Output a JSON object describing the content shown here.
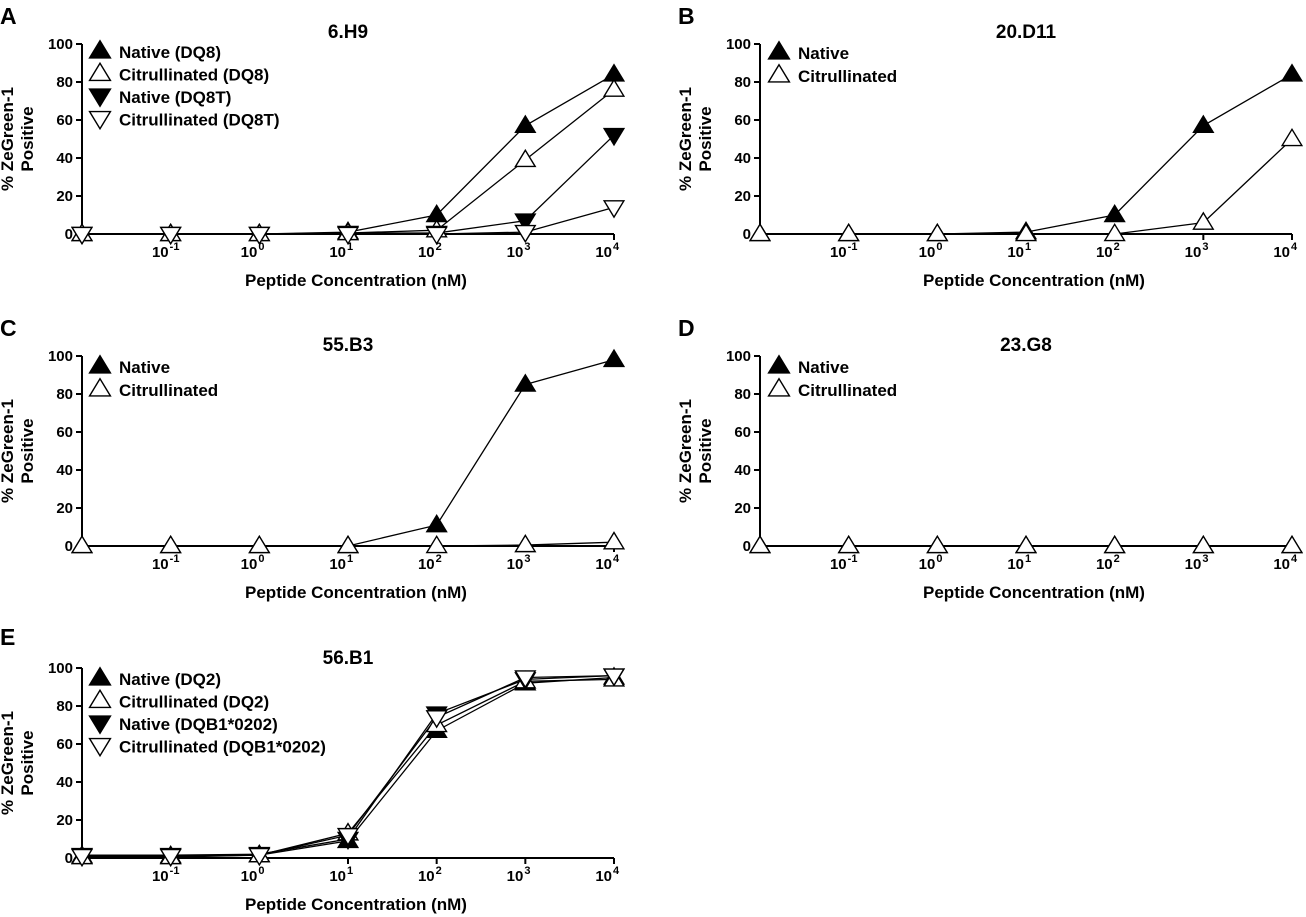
{
  "chart_data": [
    {
      "panel": "A",
      "title": "6.H9",
      "type": "line",
      "xlabel": "Peptide Concentration (nM)",
      "ylabel": [
        "% ZeGreen-1",
        "Positive"
      ],
      "x_tick_labels": [
        {
          "base": "10",
          "exp": "-1"
        },
        {
          "base": "10",
          "exp": "0"
        },
        {
          "base": "10",
          "exp": "1"
        },
        {
          "base": "10",
          "exp": "2"
        },
        {
          "base": "10",
          "exp": "3"
        },
        {
          "base": "10",
          "exp": "4"
        }
      ],
      "x_log10": [
        -2,
        -1,
        0,
        1,
        2,
        3,
        4
      ],
      "y_ticks": [
        0,
        20,
        40,
        60,
        80,
        100
      ],
      "ylim": [
        0,
        100
      ],
      "series": [
        {
          "name": "Native (DQ8)",
          "marker": "triangle-up-filled",
          "values": [
            0,
            0,
            0,
            1,
            10,
            57,
            84
          ]
        },
        {
          "name": "Citrullinated (DQ8)",
          "marker": "triangle-up-open",
          "values": [
            0,
            0,
            0,
            0.5,
            2,
            39,
            76
          ]
        },
        {
          "name": "Native (DQ8T)",
          "marker": "triangle-down-filled",
          "values": [
            0,
            0,
            0,
            0.5,
            0.5,
            7,
            52
          ]
        },
        {
          "name": "Citrullinated (DQ8T)",
          "marker": "triangle-down-open",
          "values": [
            0,
            0,
            0,
            0,
            0,
            1,
            14
          ]
        }
      ]
    },
    {
      "panel": "B",
      "title": "20.D11",
      "type": "line",
      "xlabel": "Peptide Concentration (nM)",
      "ylabel": [
        "% ZeGreen-1",
        "Positive"
      ],
      "x_tick_labels": [
        {
          "base": "10",
          "exp": "-1"
        },
        {
          "base": "10",
          "exp": "0"
        },
        {
          "base": "10",
          "exp": "1"
        },
        {
          "base": "10",
          "exp": "2"
        },
        {
          "base": "10",
          "exp": "3"
        },
        {
          "base": "10",
          "exp": "4"
        }
      ],
      "x_log10": [
        -2,
        -1,
        0,
        1,
        2,
        3,
        4
      ],
      "y_ticks": [
        0,
        20,
        40,
        60,
        80,
        100
      ],
      "ylim": [
        0,
        100
      ],
      "series": [
        {
          "name": "Native",
          "marker": "triangle-up-filled",
          "values": [
            0,
            0,
            0,
            1,
            10,
            57,
            84
          ]
        },
        {
          "name": "Citrullinated",
          "marker": "triangle-up-open",
          "values": [
            0,
            0,
            0,
            0,
            0,
            6,
            50
          ]
        }
      ]
    },
    {
      "panel": "C",
      "title": "55.B3",
      "type": "line",
      "xlabel": "Peptide Concentration (nM)",
      "ylabel": [
        "% ZeGreen-1",
        "Positive"
      ],
      "x_tick_labels": [
        {
          "base": "10",
          "exp": "-1"
        },
        {
          "base": "10",
          "exp": "0"
        },
        {
          "base": "10",
          "exp": "1"
        },
        {
          "base": "10",
          "exp": "2"
        },
        {
          "base": "10",
          "exp": "3"
        },
        {
          "base": "10",
          "exp": "4"
        }
      ],
      "x_log10": [
        -2,
        -1,
        0,
        1,
        2,
        3,
        4
      ],
      "y_ticks": [
        0,
        20,
        40,
        60,
        80,
        100
      ],
      "ylim": [
        0,
        100
      ],
      "series": [
        {
          "name": "Native",
          "marker": "triangle-up-filled",
          "values": [
            0,
            0,
            0,
            0,
            11,
            85,
            98
          ]
        },
        {
          "name": "Citrullinated",
          "marker": "triangle-up-open",
          "values": [
            0,
            0,
            0,
            0,
            0,
            0.5,
            2
          ]
        }
      ]
    },
    {
      "panel": "D",
      "title": "23.G8",
      "type": "line",
      "xlabel": "Peptide Concentration (nM)",
      "ylabel": [
        "% ZeGreen-1",
        "Positive"
      ],
      "x_tick_labels": [
        {
          "base": "10",
          "exp": "-1"
        },
        {
          "base": "10",
          "exp": "0"
        },
        {
          "base": "10",
          "exp": "1"
        },
        {
          "base": "10",
          "exp": "2"
        },
        {
          "base": "10",
          "exp": "3"
        },
        {
          "base": "10",
          "exp": "4"
        }
      ],
      "x_log10": [
        -2,
        -1,
        0,
        1,
        2,
        3,
        4
      ],
      "y_ticks": [
        0,
        20,
        40,
        60,
        80,
        100
      ],
      "ylim": [
        0,
        100
      ],
      "series": [
        {
          "name": "Native",
          "marker": "triangle-up-filled",
          "values": [
            0,
            0,
            0,
            0,
            0,
            0,
            0
          ]
        },
        {
          "name": "Citrullinated",
          "marker": "triangle-up-open",
          "values": [
            0,
            0,
            0,
            0,
            0,
            0,
            0
          ]
        }
      ]
    },
    {
      "panel": "E",
      "title": "56.B1",
      "type": "line",
      "xlabel": "Peptide Concentration (nM)",
      "ylabel": [
        "% ZeGreen-1",
        "Positive"
      ],
      "x_tick_labels": [
        {
          "base": "10",
          "exp": "-1"
        },
        {
          "base": "10",
          "exp": "0"
        },
        {
          "base": "10",
          "exp": "1"
        },
        {
          "base": "10",
          "exp": "2"
        },
        {
          "base": "10",
          "exp": "3"
        },
        {
          "base": "10",
          "exp": "4"
        }
      ],
      "x_log10": [
        -2,
        -1,
        0,
        1,
        2,
        3,
        4
      ],
      "y_ticks": [
        0,
        20,
        40,
        60,
        80,
        100
      ],
      "ylim": [
        0,
        100
      ],
      "series": [
        {
          "name": "Native (DQ2)",
          "marker": "triangle-up-filled",
          "values": [
            1,
            1,
            1.5,
            9,
            67,
            92,
            95
          ]
        },
        {
          "name": "Citrullinated (DQ2)",
          "marker": "triangle-up-open",
          "values": [
            0.5,
            0.5,
            1.5,
            13,
            70,
            93,
            94
          ]
        },
        {
          "name": "Native (DQB1*0202)",
          "marker": "triangle-down-filled",
          "values": [
            1.5,
            1.5,
            2,
            10,
            76,
            94,
            96
          ]
        },
        {
          "name": "Citrullinated (DQB1*0202)",
          "marker": "triangle-down-open",
          "values": [
            1,
            1,
            1.5,
            12,
            74,
            95,
            96
          ]
        }
      ]
    }
  ]
}
